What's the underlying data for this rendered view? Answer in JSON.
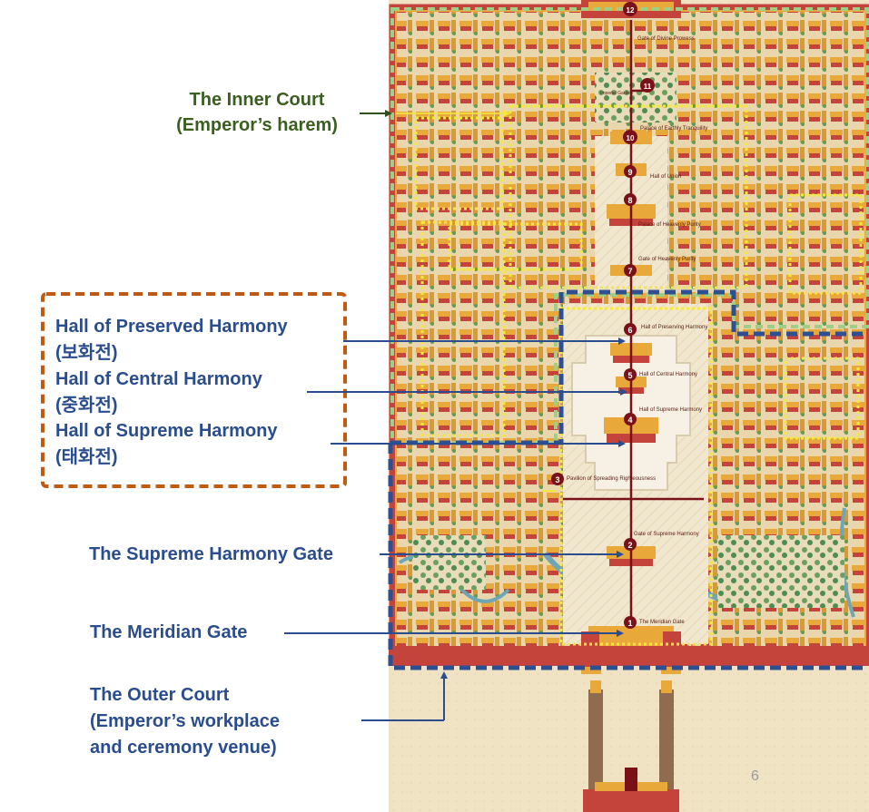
{
  "labels": {
    "inner_court": {
      "line1": "The Inner Court",
      "line2": "(Emperor’s harem)"
    },
    "preserved_harmony": {
      "name": "Hall of Preserved Harmony",
      "korean": "(보화전)"
    },
    "central_harmony": {
      "name": "Hall of Central Harmony",
      "korean": "(중화전)"
    },
    "supreme_harmony": {
      "name": "Hall of Supreme Harmony",
      "korean": "(태화전)"
    },
    "supreme_gate": "The Supreme Harmony Gate",
    "meridian_gate": "The Meridian Gate",
    "outer_court": {
      "line1": "The Outer Court",
      "line2": "(Emperor’s workplace",
      "line3": "and ceremony venue)"
    }
  },
  "map_markers": [
    {
      "number": "1",
      "caption": "The Meridian Gate"
    },
    {
      "number": "2",
      "caption": "Gate of Supreme Harmony"
    },
    {
      "number": "3",
      "caption": "Pavilion of Spreading Righteousness"
    },
    {
      "number": "4",
      "caption": "Hall of Supreme Harmony"
    },
    {
      "number": "5",
      "caption": "Hall of Central Harmony"
    },
    {
      "number": "6",
      "caption": "Hall of Preserving Harmony"
    },
    {
      "number": "7",
      "caption": "Gate of Heavenly Purity"
    },
    {
      "number": "8",
      "caption": "Palace of Heavenly Purity"
    },
    {
      "number": "9",
      "caption": "Hall of Union"
    },
    {
      "number": "10",
      "caption": "Palace of Earthly Tranquility"
    },
    {
      "number": "11",
      "caption": "Imperial Garden"
    },
    {
      "number": "12",
      "caption": "Gate of Divine Prowess"
    }
  ],
  "page_number": "6",
  "colors": {
    "label_blue": "#2a4d8f",
    "label_green": "#3a5f1e",
    "outer_court_border": "#2f4f93",
    "inner_court_border": "#9fcf86",
    "focus_box_border": "#c35a12",
    "yellow_dotted": "#f2e93a",
    "marker_fill": "#7a1018",
    "map_ground": "#efe3c4",
    "roof_yellow": "#e8a83a",
    "wall_red": "#c4433b"
  }
}
